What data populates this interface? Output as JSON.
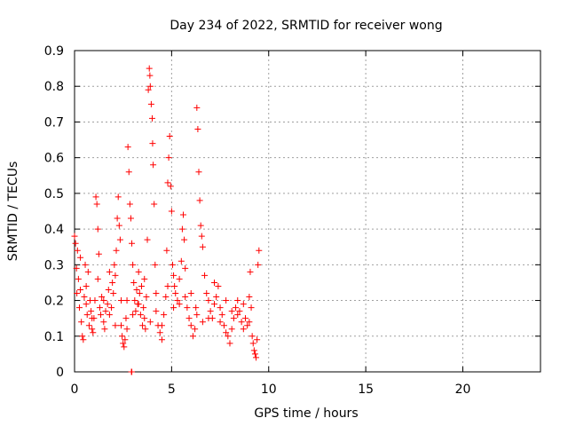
{
  "chart_data": {
    "type": "scatter",
    "title": "Day 234 of 2022, SRMTID for receiver wong",
    "xlabel": "GPS time / hours",
    "ylabel": "SRMTID / TECUs",
    "xlim": [
      0,
      24
    ],
    "ylim": [
      0,
      0.9
    ],
    "xticks": [
      0,
      5,
      10,
      15,
      20
    ],
    "yticks": [
      0,
      0.1,
      0.2,
      0.3,
      0.4,
      0.5,
      0.6,
      0.7,
      0.8,
      0.9
    ],
    "grid": true,
    "marker": "+",
    "series": [
      {
        "name": "wong",
        "color": "#ff0000",
        "points": [
          [
            0.0,
            0.38
          ],
          [
            0.05,
            0.36
          ],
          [
            0.1,
            0.29
          ],
          [
            0.12,
            0.22
          ],
          [
            0.15,
            0.34
          ],
          [
            0.2,
            0.26
          ],
          [
            0.25,
            0.18
          ],
          [
            0.3,
            0.23
          ],
          [
            0.35,
            0.14
          ],
          [
            0.4,
            0.1
          ],
          [
            0.45,
            0.09
          ],
          [
            0.5,
            0.21
          ],
          [
            0.55,
            0.3
          ],
          [
            0.6,
            0.19
          ],
          [
            0.65,
            0.16
          ],
          [
            0.7,
            0.28
          ],
          [
            0.75,
            0.13
          ],
          [
            0.8,
            0.2
          ],
          [
            0.85,
            0.17
          ],
          [
            0.9,
            0.12
          ],
          [
            0.95,
            0.11
          ],
          [
            1.0,
            0.15
          ],
          [
            1.05,
            0.2
          ],
          [
            1.1,
            0.49
          ],
          [
            1.15,
            0.47
          ],
          [
            1.2,
            0.4
          ],
          [
            1.25,
            0.33
          ],
          [
            1.3,
            0.18
          ],
          [
            1.35,
            0.16
          ],
          [
            1.4,
            0.21
          ],
          [
            1.5,
            0.14
          ],
          [
            1.55,
            0.12
          ],
          [
            1.6,
            0.17
          ],
          [
            1.7,
            0.19
          ],
          [
            1.75,
            0.23
          ],
          [
            1.8,
            0.16
          ],
          [
            1.9,
            0.18
          ],
          [
            1.95,
            0.25
          ],
          [
            2.0,
            0.22
          ],
          [
            2.05,
            0.3
          ],
          [
            2.1,
            0.27
          ],
          [
            2.15,
            0.34
          ],
          [
            2.2,
            0.43
          ],
          [
            2.25,
            0.49
          ],
          [
            2.3,
            0.41
          ],
          [
            2.35,
            0.37
          ],
          [
            2.4,
            0.13
          ],
          [
            2.45,
            0.1
          ],
          [
            2.5,
            0.08
          ],
          [
            2.55,
            0.07
          ],
          [
            2.6,
            0.09
          ],
          [
            2.65,
            0.15
          ],
          [
            2.7,
            0.12
          ],
          [
            2.75,
            0.63
          ],
          [
            2.8,
            0.56
          ],
          [
            2.85,
            0.47
          ],
          [
            2.9,
            0.43
          ],
          [
            2.95,
            0.36
          ],
          [
            3.0,
            0.3
          ],
          [
            3.05,
            0.25
          ],
          [
            2.93,
            0.0
          ],
          [
            2.95,
            0.0
          ],
          [
            3.1,
            0.2
          ],
          [
            3.15,
            0.17
          ],
          [
            3.2,
            0.23
          ],
          [
            3.25,
            0.19
          ],
          [
            3.3,
            0.28
          ],
          [
            3.35,
            0.22
          ],
          [
            3.4,
            0.16
          ],
          [
            3.45,
            0.24
          ],
          [
            3.5,
            0.13
          ],
          [
            3.55,
            0.18
          ],
          [
            3.6,
            0.15
          ],
          [
            3.65,
            0.12
          ],
          [
            3.7,
            0.21
          ],
          [
            3.75,
            0.37
          ],
          [
            3.8,
            0.79
          ],
          [
            3.85,
            0.85
          ],
          [
            3.88,
            0.83
          ],
          [
            3.9,
            0.8
          ],
          [
            3.95,
            0.75
          ],
          [
            4.0,
            0.71
          ],
          [
            4.02,
            0.64
          ],
          [
            4.05,
            0.58
          ],
          [
            4.1,
            0.47
          ],
          [
            4.15,
            0.3
          ],
          [
            4.2,
            0.22
          ],
          [
            4.3,
            0.13
          ],
          [
            4.4,
            0.11
          ],
          [
            4.5,
            0.09
          ],
          [
            4.6,
            0.16
          ],
          [
            4.7,
            0.21
          ],
          [
            4.75,
            0.34
          ],
          [
            4.8,
            0.53
          ],
          [
            4.85,
            0.6
          ],
          [
            4.9,
            0.66
          ],
          [
            4.95,
            0.52
          ],
          [
            5.0,
            0.45
          ],
          [
            5.05,
            0.3
          ],
          [
            5.1,
            0.27
          ],
          [
            5.15,
            0.24
          ],
          [
            5.2,
            0.22
          ],
          [
            5.3,
            0.2
          ],
          [
            5.4,
            0.26
          ],
          [
            5.5,
            0.31
          ],
          [
            5.55,
            0.4
          ],
          [
            5.6,
            0.44
          ],
          [
            5.65,
            0.37
          ],
          [
            5.7,
            0.29
          ],
          [
            5.8,
            0.18
          ],
          [
            5.9,
            0.15
          ],
          [
            6.0,
            0.13
          ],
          [
            6.1,
            0.1
          ],
          [
            6.2,
            0.12
          ],
          [
            6.25,
            0.18
          ],
          [
            6.3,
            0.74
          ],
          [
            6.35,
            0.68
          ],
          [
            6.4,
            0.56
          ],
          [
            6.45,
            0.48
          ],
          [
            6.5,
            0.41
          ],
          [
            6.55,
            0.38
          ],
          [
            6.6,
            0.35
          ],
          [
            6.7,
            0.27
          ],
          [
            6.8,
            0.22
          ],
          [
            6.9,
            0.2
          ],
          [
            7.0,
            0.17
          ],
          [
            7.1,
            0.15
          ],
          [
            7.2,
            0.19
          ],
          [
            7.3,
            0.21
          ],
          [
            7.4,
            0.24
          ],
          [
            7.5,
            0.18
          ],
          [
            7.6,
            0.16
          ],
          [
            7.7,
            0.13
          ],
          [
            7.8,
            0.11
          ],
          [
            7.9,
            0.1
          ],
          [
            8.0,
            0.08
          ],
          [
            8.1,
            0.12
          ],
          [
            8.2,
            0.15
          ],
          [
            8.3,
            0.18
          ],
          [
            8.4,
            0.2
          ],
          [
            8.5,
            0.17
          ],
          [
            8.6,
            0.14
          ],
          [
            8.7,
            0.12
          ],
          [
            8.8,
            0.15
          ],
          [
            8.9,
            0.13
          ],
          [
            9.0,
            0.21
          ],
          [
            9.05,
            0.28
          ],
          [
            9.1,
            0.18
          ],
          [
            9.15,
            0.1
          ],
          [
            9.2,
            0.08
          ],
          [
            9.25,
            0.06
          ],
          [
            9.3,
            0.05
          ],
          [
            9.35,
            0.04
          ],
          [
            9.4,
            0.09
          ],
          [
            9.45,
            0.3
          ],
          [
            9.5,
            0.34
          ],
          [
            0.3,
            0.32
          ],
          [
            0.6,
            0.24
          ],
          [
            1.2,
            0.26
          ],
          [
            1.8,
            0.28
          ],
          [
            2.4,
            0.2
          ],
          [
            3.0,
            0.16
          ],
          [
            3.6,
            0.26
          ],
          [
            4.2,
            0.17
          ],
          [
            4.8,
            0.24
          ],
          [
            5.4,
            0.19
          ],
          [
            6.0,
            0.22
          ],
          [
            6.6,
            0.14
          ],
          [
            7.2,
            0.25
          ],
          [
            7.8,
            0.2
          ],
          [
            8.4,
            0.16
          ],
          [
            9.0,
            0.14
          ],
          [
            0.9,
            0.15
          ],
          [
            1.5,
            0.2
          ],
          [
            2.1,
            0.13
          ],
          [
            2.7,
            0.2
          ],
          [
            3.3,
            0.19
          ],
          [
            3.9,
            0.14
          ],
          [
            4.5,
            0.13
          ],
          [
            5.1,
            0.18
          ],
          [
            5.7,
            0.21
          ],
          [
            6.3,
            0.16
          ],
          [
            6.9,
            0.15
          ],
          [
            7.5,
            0.14
          ],
          [
            8.1,
            0.17
          ],
          [
            8.7,
            0.19
          ]
        ]
      }
    ]
  }
}
